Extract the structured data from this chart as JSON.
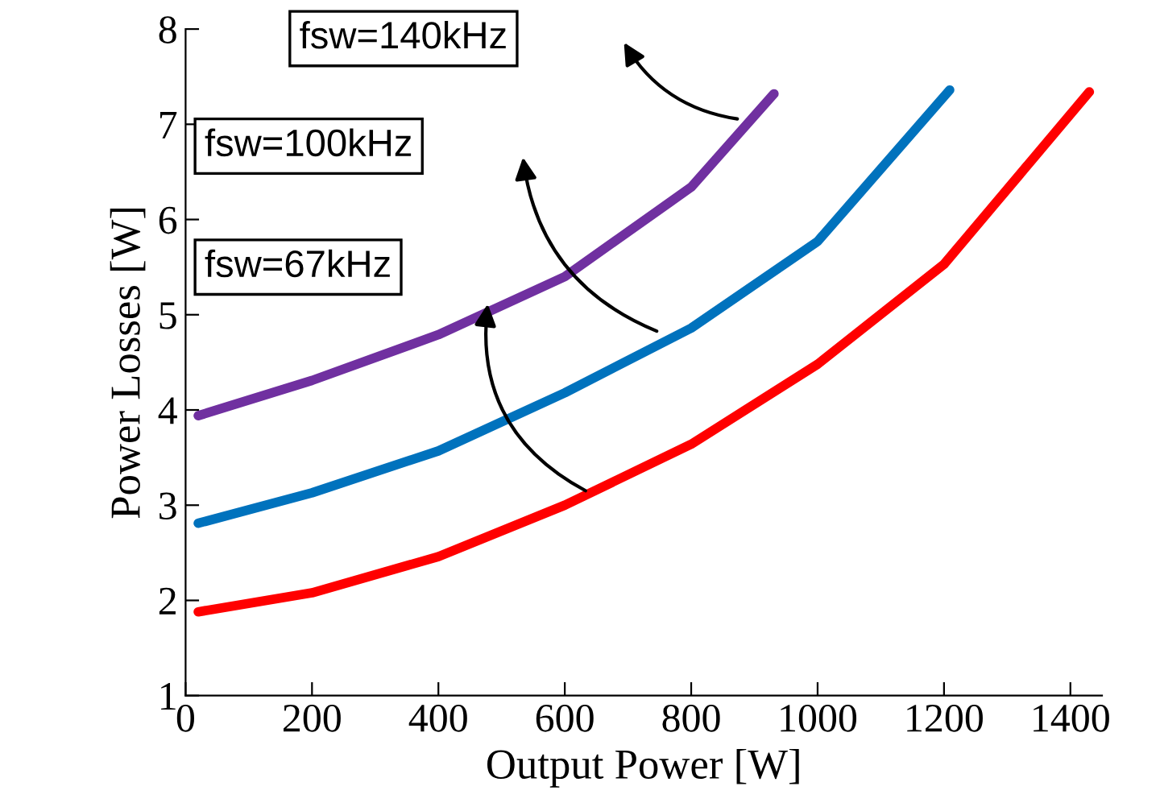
{
  "chart_data": {
    "type": "line",
    "xlabel": "Output Power [W]",
    "ylabel": "Power Losses [W]",
    "xlim": [
      0,
      1450
    ],
    "ylim": [
      1,
      8
    ],
    "xticks": [
      0,
      200,
      400,
      600,
      800,
      1000,
      1200,
      1400
    ],
    "yticks": [
      1,
      2,
      3,
      4,
      5,
      6,
      7,
      8
    ],
    "grid": false,
    "legend": false,
    "marker": "none",
    "line_style": "solid",
    "series": [
      {
        "color": "#ff0000",
        "x": [
          20,
          200,
          400,
          600,
          800,
          1000,
          1200,
          1430
        ],
        "values": [
          1.88,
          2.08,
          2.46,
          3.0,
          3.64,
          4.48,
          5.53,
          7.34
        ]
      },
      {
        "color": "#0072bd",
        "x": [
          20,
          200,
          400,
          600,
          800,
          1000,
          1209
        ],
        "values": [
          2.81,
          3.13,
          3.57,
          4.18,
          4.86,
          5.77,
          7.36
        ]
      },
      {
        "color": "#7030a0",
        "x": [
          20,
          200,
          400,
          600,
          800,
          931
        ],
        "values": [
          3.94,
          4.31,
          4.79,
          5.4,
          6.34,
          7.32
        ]
      }
    ],
    "annotations": [
      "fsw=67kHz",
      "fsw=100kHz",
      "fsw=140kHz"
    ]
  }
}
